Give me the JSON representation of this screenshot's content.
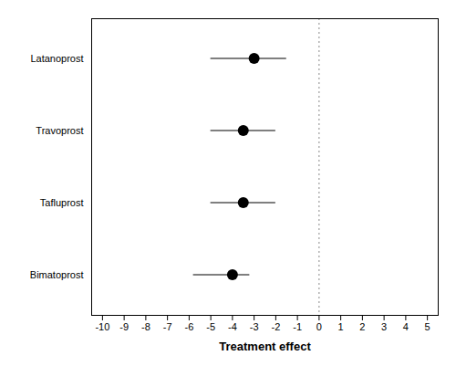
{
  "chart_data": {
    "type": "forest",
    "xlabel": "Treatment effect",
    "categories": [
      "Latanoprost",
      "Travoprost",
      "Tafluprost",
      "Bimatoprost"
    ],
    "values": [
      -3.0,
      -3.5,
      -3.5,
      -4.0
    ],
    "ci_low": [
      -5.0,
      -5.0,
      -5.0,
      -5.8
    ],
    "ci_high": [
      -1.5,
      -2.0,
      -2.0,
      -3.2
    ],
    "xlim": [
      -10.5,
      5.5
    ],
    "xticks": [
      -10,
      -9,
      -8,
      -7,
      -6,
      -5,
      -4,
      -3,
      -2,
      -1,
      0,
      1,
      2,
      3,
      4,
      5
    ],
    "reference_x": 0
  }
}
